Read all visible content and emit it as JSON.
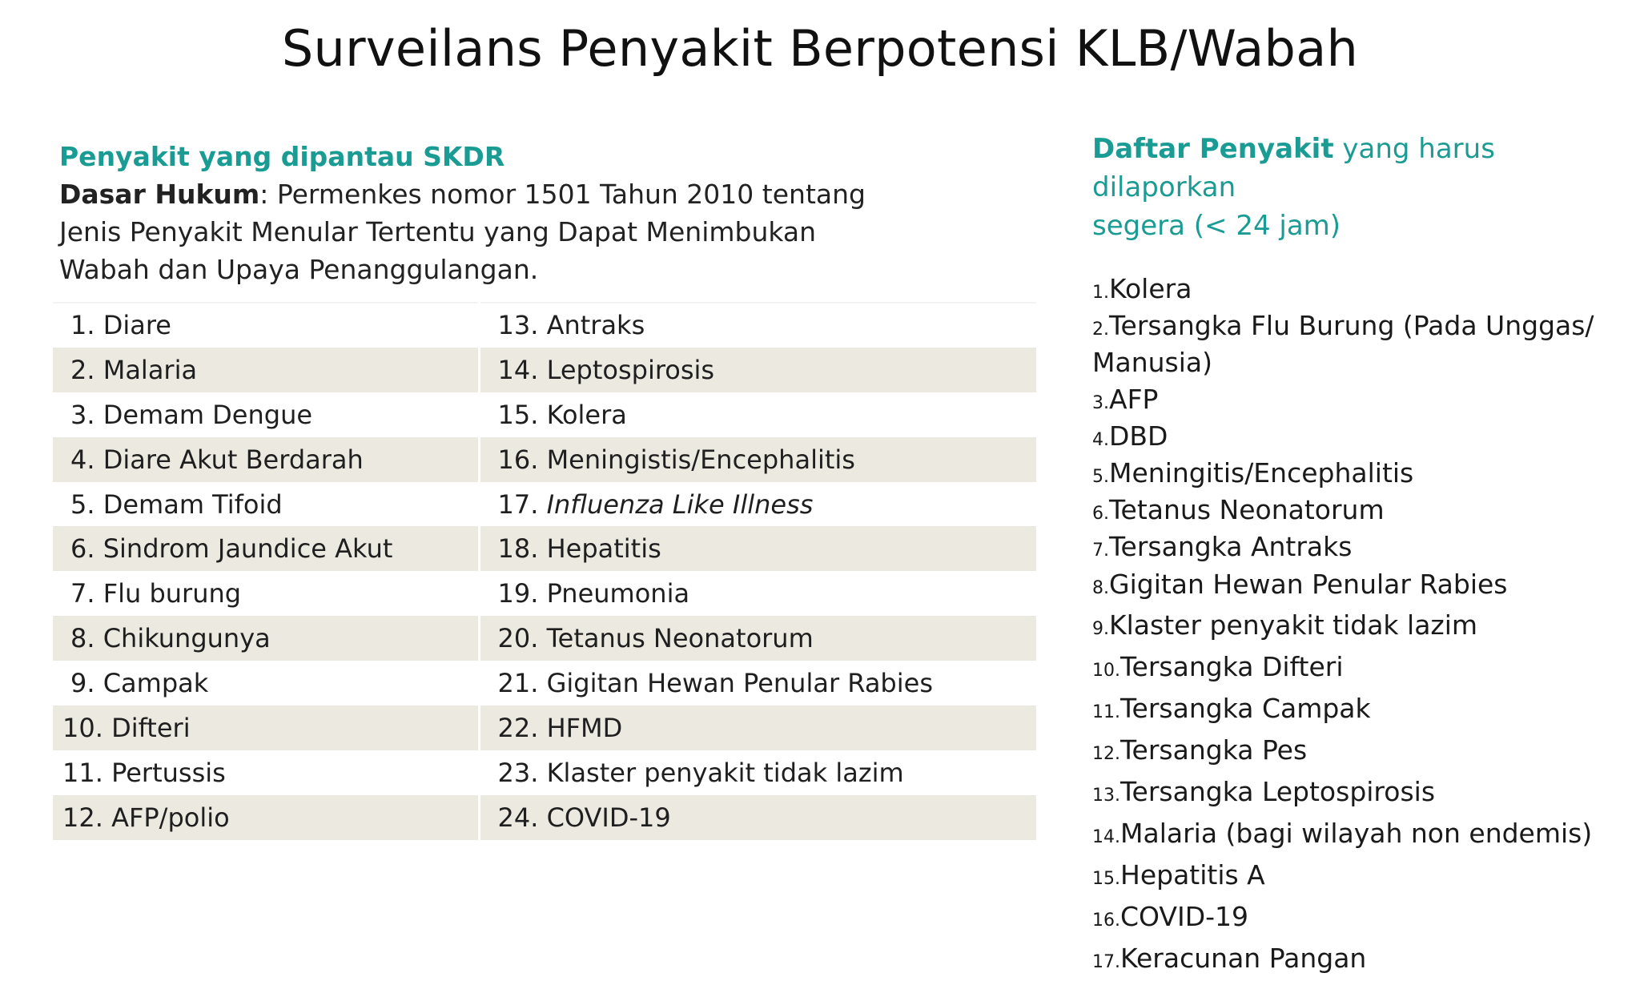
{
  "title": "Surveilans Penyakit Berpotensi KLB/Wabah",
  "left": {
    "heading": "Penyakit yang dipantau SKDR",
    "legal_label": "Dasar Hukum",
    "legal_text_line1": ": Permenkes nomor 1501 Tahun 2010 tentang",
    "legal_text_line2": "Jenis Penyakit Menular Tertentu yang Dapat Menimbukan",
    "legal_text_line3": "Wabah dan Upaya Penanggulangan.",
    "table": [
      [
        "1. Diare",
        "13. Antraks"
      ],
      [
        "2. Malaria",
        "14. Leptospirosis"
      ],
      [
        "3. Demam Dengue",
        "15. Kolera"
      ],
      [
        "4. Diare Akut Berdarah",
        "16. Meningistis/Encephalitis"
      ],
      [
        "5. Demam Tifoid",
        "17. "
      ],
      [
        "6. Sindrom Jaundice Akut",
        "18. Hepatitis"
      ],
      [
        "7. Flu burung",
        "19. Pneumonia"
      ],
      [
        "8. Chikungunya",
        "20. Tetanus Neonatorum"
      ],
      [
        "9. Campak",
        "21. Gigitan Hewan Penular Rabies"
      ],
      [
        "10. Difteri",
        "22. HFMD"
      ],
      [
        "11. Pertussis",
        "23. Klaster penyakit tidak lazim"
      ],
      [
        "12. AFP/polio",
        "24. COVID-19"
      ]
    ],
    "italic_item": "Influenza Like Illness"
  },
  "right": {
    "heading_bold": "Daftar Penyakit",
    "heading_rest_line1": " yang harus dilaporkan",
    "heading_line2": "segera (< 24 jam)",
    "items": [
      {
        "n": "1.",
        "text": "Kolera"
      },
      {
        "n": "2.",
        "text": "Tersangka Flu Burung (Pada Unggas/"
      },
      {
        "n": "",
        "text": "Manusia)"
      },
      {
        "n": "3.",
        "text": "AFP"
      },
      {
        "n": "4.",
        "text": "DBD"
      },
      {
        "n": "5.",
        "text": "Meningitis/Encephalitis"
      },
      {
        "n": "6.",
        "text": "Tetanus Neonatorum"
      },
      {
        "n": "7.",
        "text": "Tersangka Antraks"
      },
      {
        "n": "8.",
        "text": "Gigitan Hewan Penular Rabies"
      },
      {
        "n": "9.",
        "text": "Klaster penyakit tidak lazim"
      },
      {
        "n": "10.",
        "text": "Tersangka Difteri"
      },
      {
        "n": "11.",
        "text": "Tersangka Campak"
      },
      {
        "n": "12.",
        "text": "Tersangka Pes"
      },
      {
        "n": "13.",
        "text": "Tersangka Leptospirosis"
      },
      {
        "n": "14.",
        "text": "Malaria (bagi wilayah non endemis)"
      },
      {
        "n": "15.",
        "text": "Hepatitis A"
      },
      {
        "n": "16.",
        "text": "COVID-19"
      },
      {
        "n": "17.",
        "text": "Keracunan Pangan"
      }
    ]
  },
  "colors": {
    "accent": "#1a9c94",
    "row_shade": "#ebe9e0"
  }
}
